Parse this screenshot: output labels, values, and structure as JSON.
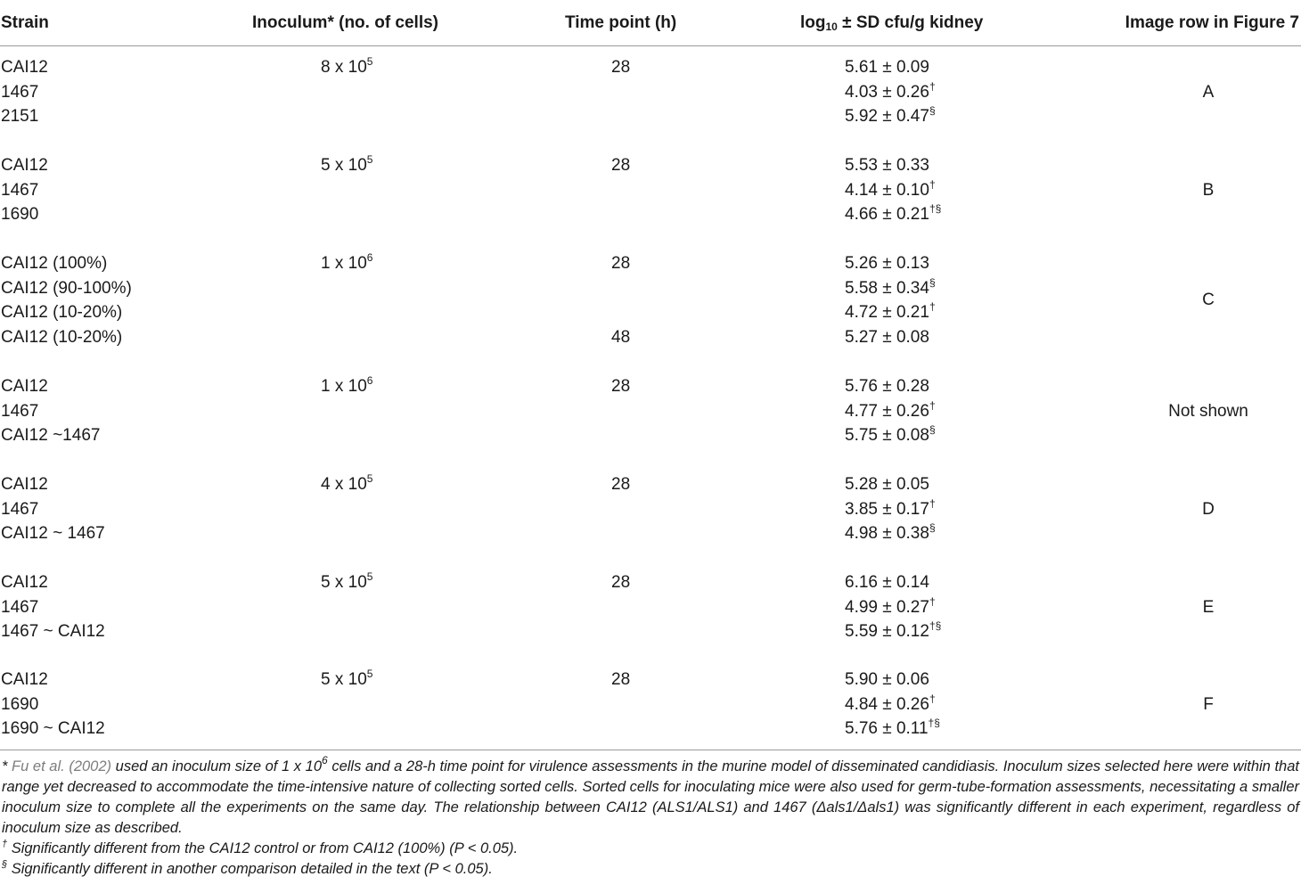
{
  "headers": {
    "strain": "Strain",
    "inoculum": "Inoculum* (no. of cells)",
    "time_point": "Time point (h)",
    "log_prefix": "log",
    "log_sub": "10",
    "log_suffix": " ± SD cfu/g kidney",
    "image_row": "Image row in Figure 7"
  },
  "groups": [
    {
      "inoculum": "8 x 10",
      "inoculum_exp": "5",
      "image_row": "A",
      "rows": [
        {
          "strain": "CAI12",
          "time": "28",
          "log": "5.61 ± 0.09",
          "mark": ""
        },
        {
          "strain": "1467",
          "time": "",
          "log": "4.03 ± 0.26",
          "mark": "†"
        },
        {
          "strain": "2151",
          "time": "",
          "log": "5.92 ± 0.47",
          "mark": "§"
        }
      ]
    },
    {
      "inoculum": "5 x 10",
      "inoculum_exp": "5",
      "image_row": "B",
      "rows": [
        {
          "strain": "CAI12",
          "time": "28",
          "log": "5.53 ± 0.33",
          "mark": ""
        },
        {
          "strain": "1467",
          "time": "",
          "log": "4.14 ± 0.10",
          "mark": "†"
        },
        {
          "strain": "1690",
          "time": "",
          "log": "4.66 ± 0.21",
          "mark": "†§"
        }
      ]
    },
    {
      "inoculum": "1 x 10",
      "inoculum_exp": "6",
      "image_row": "C",
      "rows": [
        {
          "strain": "CAI12 (100%)",
          "time": "28",
          "log": "5.26 ± 0.13",
          "mark": ""
        },
        {
          "strain": "CAI12 (90-100%)",
          "time": "",
          "log": "5.58 ± 0.34",
          "mark": "§"
        },
        {
          "strain": "CAI12 (10-20%)",
          "time": "",
          "log": "4.72 ± 0.21",
          "mark": "†"
        },
        {
          "strain": "CAI12 (10-20%)",
          "time": "48",
          "log": "5.27 ± 0.08",
          "mark": ""
        }
      ]
    },
    {
      "inoculum": "1 x 10",
      "inoculum_exp": "6",
      "image_row": "Not shown",
      "rows": [
        {
          "strain": "CAI12",
          "time": "28",
          "log": "5.76 ± 0.28",
          "mark": ""
        },
        {
          "strain": "1467",
          "time": "",
          "log": "4.77 ± 0.26",
          "mark": "†"
        },
        {
          "strain": "CAI12 ~1467",
          "time": "",
          "log": "5.75 ± 0.08",
          "mark": "§"
        }
      ]
    },
    {
      "inoculum": "4 x 10",
      "inoculum_exp": "5",
      "image_row": "D",
      "rows": [
        {
          "strain": "CAI12",
          "time": "28",
          "log": "5.28 ± 0.05",
          "mark": ""
        },
        {
          "strain": "1467",
          "time": "",
          "log": "3.85 ± 0.17",
          "mark": "†"
        },
        {
          "strain": "CAI12 ~ 1467",
          "time": "",
          "log": "4.98 ± 0.38",
          "mark": "§"
        }
      ]
    },
    {
      "inoculum": "5 x 10",
      "inoculum_exp": "5",
      "image_row": "E",
      "rows": [
        {
          "strain": "CAI12",
          "time": "28",
          "log": "6.16 ± 0.14",
          "mark": ""
        },
        {
          "strain": "1467",
          "time": "",
          "log": "4.99 ± 0.27",
          "mark": "†"
        },
        {
          "strain": "1467 ~ CAI12",
          "time": "",
          "log": "5.59 ± 0.12",
          "mark": "†§"
        }
      ]
    },
    {
      "inoculum": "5 x 10",
      "inoculum_exp": "5",
      "image_row": "F",
      "rows": [
        {
          "strain": "CAI12",
          "time": "28",
          "log": "5.90 ± 0.06",
          "mark": ""
        },
        {
          "strain": "1690",
          "time": "",
          "log": "4.84 ± 0.26",
          "mark": "†"
        },
        {
          "strain": "1690 ~ CAI12",
          "time": "",
          "log": "5.76 ± 0.11",
          "mark": "†§"
        }
      ]
    }
  ],
  "footnotes": {
    "main_star": "* ",
    "main_ref": "Fu et al. (2002)",
    "main_text_1": " used an inoculum size of 1 x 10",
    "main_exp": "6",
    "main_text_2": " cells and a 28-h time point for virulence assessments in the murine model of disseminated candidiasis. Inoculum sizes selected here were within that range yet decreased to accommodate the time-intensive nature of collecting sorted cells. Sorted cells for inoculating mice were also used for germ-tube-formation assessments, necessitating a smaller inoculum size to complete all the experiments on the same day. The relationship between CAI12 (ALS1/ALS1) and 1467 (Δals1/Δals1) was significantly different in each experiment, regardless of inoculum size as described.",
    "dagger_sym": "†",
    "dagger_text": " Significantly different from the CAI12 control or from CAI12 (100%) (P < 0.05).",
    "section_sym": "§",
    "section_text": " Significantly different in another comparison detailed in the text (P < 0.05)."
  }
}
